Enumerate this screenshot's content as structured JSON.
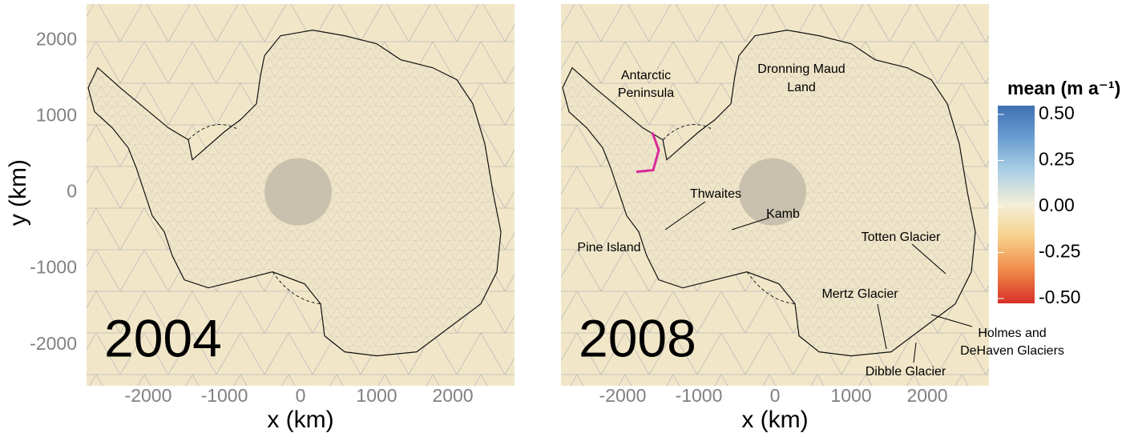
{
  "chart_data": [
    {
      "type": "map",
      "label": "2004",
      "xlabel": "x (km)",
      "ylabel": "y (km)",
      "xlim": [
        -2810,
        2810
      ],
      "ylim": [
        -2540,
        2480
      ],
      "xticks": [
        -2000,
        -1000,
        0,
        1000,
        2000
      ],
      "yticks": [
        -2000,
        -1000,
        0,
        1000,
        2000
      ]
    },
    {
      "type": "map",
      "label": "2008",
      "xlabel": "x (km)",
      "xlim": [
        -2810,
        2810
      ],
      "ylim": [
        -2540,
        2480
      ],
      "xticks": [
        -2000,
        -1000,
        0,
        1000,
        2000
      ],
      "annotations": [
        [
          "Antarctic",
          "Peninsula"
        ],
        [
          "Dronning Maud",
          "Land"
        ],
        [
          "Thwaites"
        ],
        [
          "Kamb"
        ],
        [
          "Pine Island"
        ],
        [
          "Totten Glacier"
        ],
        [
          "Mertz Glacier"
        ],
        [
          "Holmes and",
          "DeHaven Glaciers"
        ],
        [
          "Dibble Glacier"
        ]
      ],
      "colorbar": {
        "title": "mean (m a⁻¹)",
        "lim": [
          -0.5,
          0.5
        ],
        "ticks": [
          {
            "value": 0.5,
            "label": "0.50"
          },
          0.25,
          {
            "value": 0,
            "label": "0.00"
          },
          -0.25,
          {
            "value": -0.5,
            "label": "-0.50"
          }
        ],
        "colors": [
          "#d73027",
          "#f08a4b",
          "#f6d08a",
          "#f3efd8",
          "#acd0e6",
          "#6b9fd1",
          "#3f70b1"
        ]
      }
    }
  ]
}
